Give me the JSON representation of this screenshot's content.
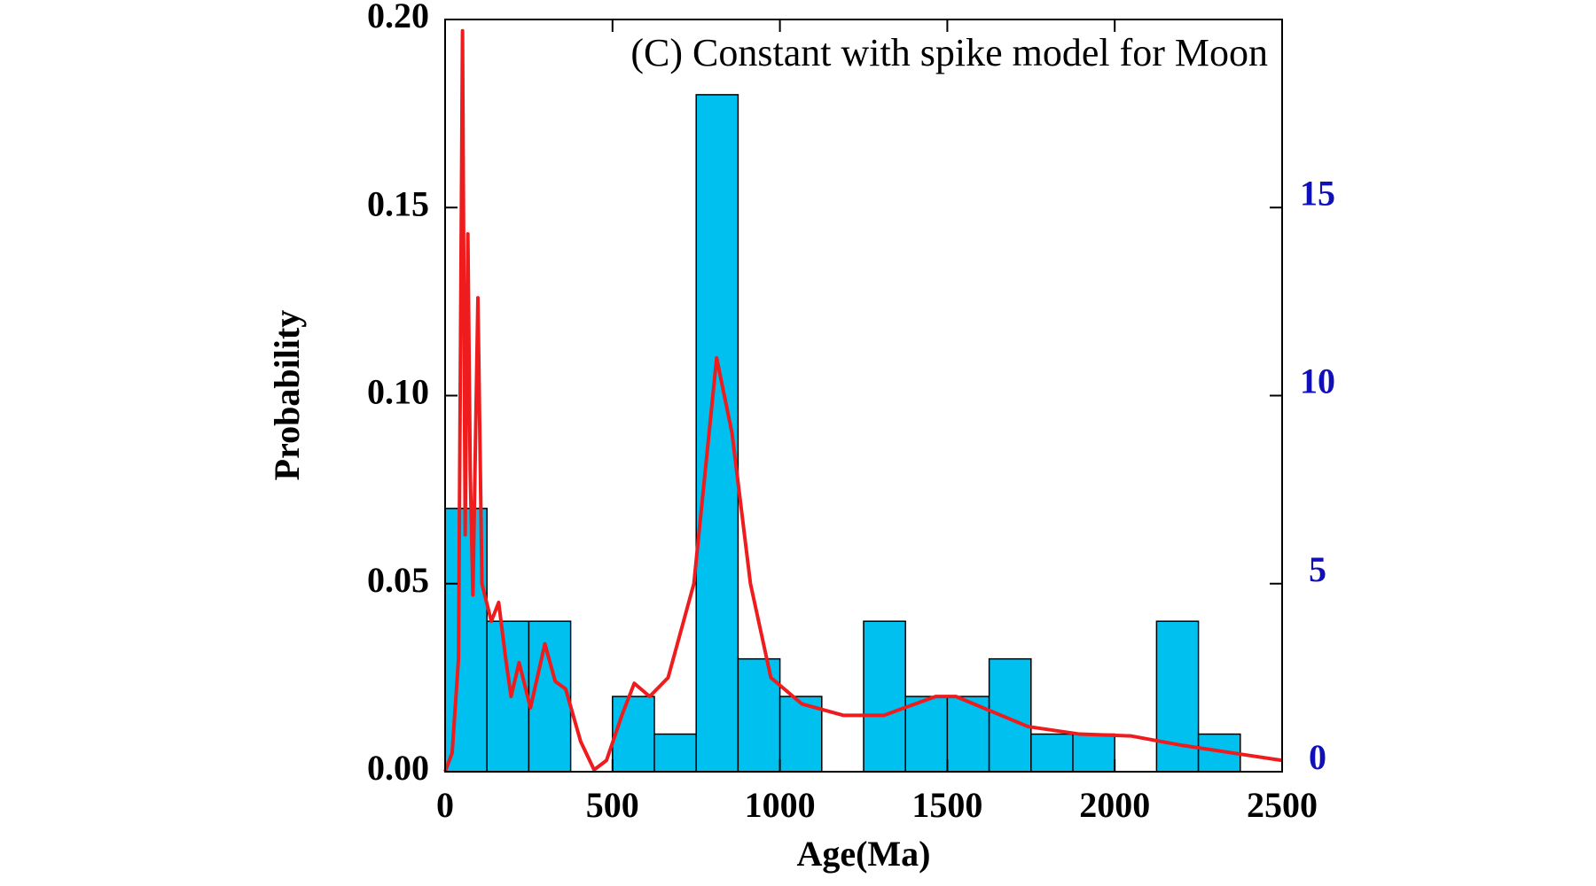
{
  "chart_data": {
    "type": "histogram",
    "title": "(C) Constant with spike model for Moon",
    "x_label": "Age(Ma)",
    "y_label": "Probability",
    "xlim": [
      0,
      2500
    ],
    "xticks": [
      0,
      500,
      1000,
      1500,
      2000,
      2500
    ],
    "ylim": [
      0,
      0.2
    ],
    "yticks": [
      {
        "value": 0,
        "label": "0.00"
      },
      {
        "value": 0.05,
        "label": "0.05"
      },
      {
        "value": 0.1,
        "label": "0.10"
      },
      {
        "value": 0.15,
        "label": "0.15"
      },
      {
        "value": 0.2,
        "label": "0.20"
      }
    ],
    "y2lim": [
      0,
      20
    ],
    "y2ticks": [
      0,
      5,
      10,
      15
    ],
    "y2tick_color": "#1010b8",
    "histogram": {
      "axis": "y2",
      "color": "#00c0f0",
      "bins": [
        0,
        125,
        250,
        375,
        500,
        625,
        750,
        875,
        1000,
        1125,
        1250,
        1375,
        1500,
        1625,
        1750,
        1875,
        2000,
        2125,
        2250,
        2375
      ],
      "counts": [
        7,
        4,
        4,
        0,
        2,
        1,
        18,
        3,
        2,
        0,
        4,
        2,
        2,
        3,
        1,
        1,
        0,
        4,
        1
      ]
    },
    "curve": {
      "color": "#ee1c1c",
      "x": [
        0,
        21,
        40,
        52,
        60,
        68,
        75,
        83,
        98,
        110,
        138,
        160,
        181,
        197,
        221,
        255,
        298,
        329,
        360,
        405,
        445,
        482,
        528,
        565,
        611,
        666,
        743,
        811,
        857,
        912,
        973,
        1066,
        1189,
        1311,
        1465,
        1526,
        1741,
        1895,
        2049,
        2202,
        2500
      ],
      "values": [
        0,
        0.005,
        0.03,
        0.197,
        0.063,
        0.143,
        0.08,
        0.047,
        0.126,
        0.05,
        0.04,
        0.045,
        0.03,
        0.02,
        0.029,
        0.017,
        0.034,
        0.024,
        0.022,
        0.008,
        0.0005,
        0.003,
        0.015,
        0.0235,
        0.02,
        0.025,
        0.05,
        0.11,
        0.09,
        0.05,
        0.025,
        0.018,
        0.015,
        0.015,
        0.02,
        0.02,
        0.012,
        0.01,
        0.0095,
        0.007,
        0.003
      ]
    }
  }
}
